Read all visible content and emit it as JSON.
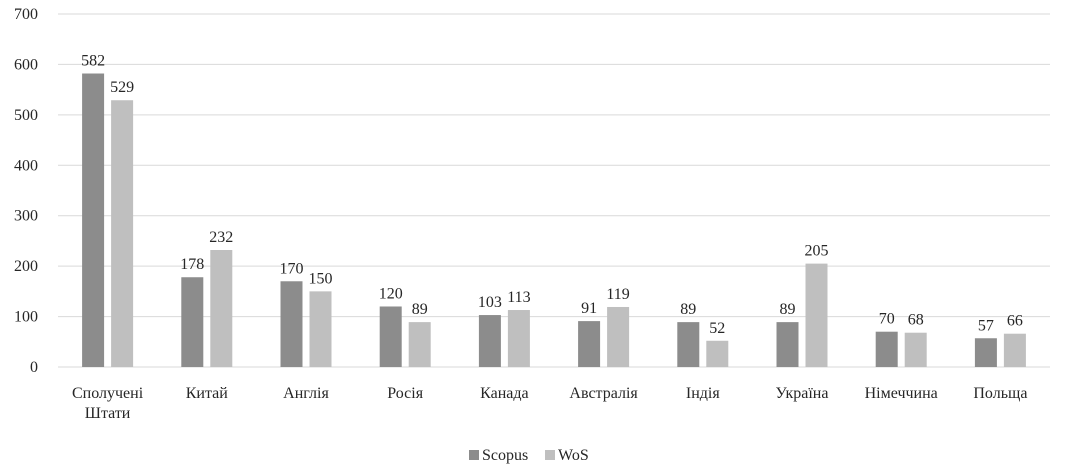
{
  "chart_data": {
    "type": "bar",
    "categories": [
      [
        "Сполучені",
        "Штати"
      ],
      [
        "Китай"
      ],
      [
        "Англія"
      ],
      [
        "Росія"
      ],
      [
        "Канада"
      ],
      [
        "Австралія"
      ],
      [
        "Індія"
      ],
      [
        "Україна"
      ],
      [
        "Німеччина"
      ],
      [
        "Польща"
      ]
    ],
    "series": [
      {
        "name": "Scopus",
        "color": "#8c8c8c",
        "values": [
          582,
          178,
          170,
          120,
          103,
          91,
          89,
          89,
          70,
          57
        ]
      },
      {
        "name": "WoS",
        "color": "#bfbfbf",
        "values": [
          529,
          232,
          150,
          89,
          113,
          119,
          52,
          205,
          68,
          66
        ]
      }
    ],
    "ylim": [
      0,
      700
    ],
    "yticks": [
      0,
      100,
      200,
      300,
      400,
      500,
      600,
      700
    ],
    "grid": true,
    "legend": "bottom-center",
    "data_labels": true
  }
}
